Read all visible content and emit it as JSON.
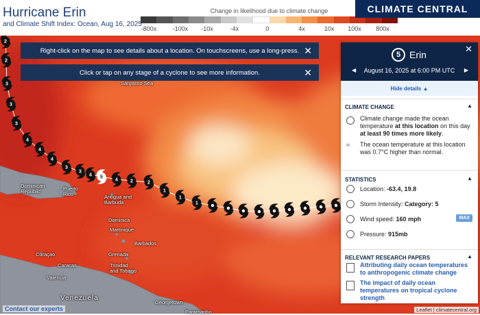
{
  "header": {
    "title": "Hurricane Erin",
    "subtitle": "and Climate Shift Index: Ocean, Aug 16, 2025",
    "logo": "CLIMATE CENTRAL"
  },
  "legend": {
    "title": "Change in likelihood due to climate change",
    "labels": [
      "-800x",
      "-100x",
      "-10x",
      "-4x",
      "0",
      "4x",
      "10x",
      "100x",
      "800x"
    ]
  },
  "banners": [
    "Right-click on the map to see details about a location. On touchscreens, use a long-press.",
    "Click or tap on any stage of a cyclone to see more information."
  ],
  "panel": {
    "category": "5",
    "name": "Erin",
    "date": "August 16, 2025 at 6:00 PM UTC",
    "toggle": "Hide details",
    "climate_change": {
      "heading": "CLIMATE CHANGE",
      "item1": [
        "Climate change made the ocean temperature ",
        "at this location",
        " on this day ",
        "at least 90 times more likely",
        "."
      ],
      "item2": "The ocean temperature at this location was 0.7°C higher than normal."
    },
    "statistics": {
      "heading": "STATISTICS",
      "location": {
        "label": "Location:",
        "value": "-63.4, 19.8"
      },
      "intensity": {
        "label": "Storm Intensity:",
        "value": "Category: 5"
      },
      "wind": {
        "label": "Wind speed:",
        "value": "160 mph",
        "badge": "MAX"
      },
      "pressure": {
        "label": "Pressure:",
        "value": "915mb"
      }
    },
    "papers": {
      "heading": "RELEVANT RESEARCH PAPERS",
      "items": [
        "Attributing daily ocean temperatures to anthropogenic climate change",
        "The impact of daily ocean temperatures on tropical cyclone strength"
      ]
    }
  },
  "map_labels": [
    "Sargasso Sea",
    "Dominican Republic",
    "Puerto Rico",
    "Antigua and Barbuda",
    "Dominica",
    "Martinique",
    "Barbados",
    "Grenada",
    "Trinidad and Tobago",
    "Curaçao",
    "Caracas",
    "Valencia",
    "Venezuela",
    "Georgetown",
    "Paramaribo"
  ],
  "track": {
    "categories": [
      "2",
      "2",
      "3",
      "3",
      "3",
      "4",
      "4",
      "4",
      "3",
      "3",
      "4",
      "5",
      "4",
      "2",
      "2",
      "1",
      "1",
      "1"
    ]
  },
  "footer": {
    "contact": "Contact our experts",
    "attribution": "Leaflet | climatecentral.org"
  }
}
